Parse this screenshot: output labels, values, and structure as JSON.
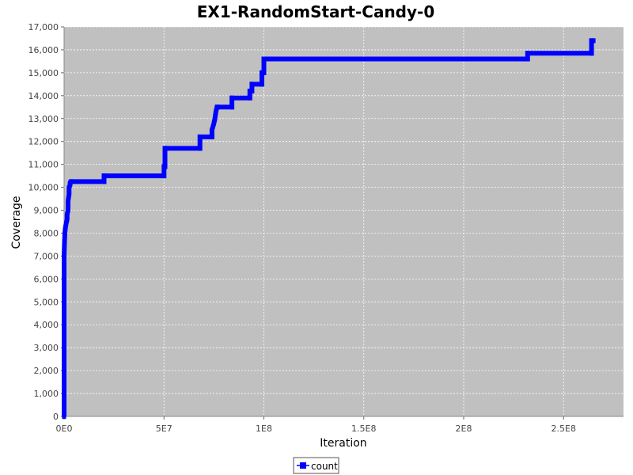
{
  "chart_data": {
    "type": "line",
    "title": "EX1-RandomStart-Candy-0",
    "xlabel": "Iteration",
    "ylabel": "Coverage",
    "xlim": [
      0,
      280000000
    ],
    "ylim": [
      0,
      17000
    ],
    "x_ticks": [
      0,
      50000000,
      100000000,
      150000000,
      200000000,
      250000000
    ],
    "x_tick_labels": [
      "0E0",
      "5E7",
      "1E8",
      "1.5E8",
      "2E8",
      "2.5E8"
    ],
    "y_ticks": [
      0,
      1000,
      2000,
      3000,
      4000,
      5000,
      6000,
      7000,
      8000,
      9000,
      10000,
      11000,
      12000,
      13000,
      14000,
      15000,
      16000,
      17000
    ],
    "y_tick_labels": [
      "0",
      "1,000",
      "2,000",
      "3,000",
      "4,000",
      "5,000",
      "6,000",
      "7,000",
      "8,000",
      "9,000",
      "10,000",
      "11,000",
      "12,000",
      "13,000",
      "14,000",
      "15,000",
      "16,000",
      "17,000"
    ],
    "grid": true,
    "legend_position": "bottom",
    "background_color": "#c0c0c0",
    "grid_color": "#ffffff",
    "series": [
      {
        "name": "count",
        "color": "#0000ff",
        "x": [
          0,
          0,
          0,
          0,
          0,
          0,
          0,
          0,
          0,
          0,
          0,
          0,
          200000,
          400000,
          600000,
          800000,
          1000000,
          1500000,
          1500000,
          2000000,
          2000000,
          2500000,
          2500000,
          3000000,
          3000000,
          3500000,
          20000000,
          20000000,
          50000000,
          50000000,
          50500000,
          50500000,
          51000000,
          68000000,
          68000000,
          74000000,
          74000000,
          75000000,
          75500000,
          76000000,
          76500000,
          77000000,
          84000000,
          84000000,
          93000000,
          93000000,
          94000000,
          94000000,
          99000000,
          99000000,
          100000000,
          100000000,
          232000000,
          232000000,
          264000000,
          264000000,
          265000000
        ],
        "y": [
          0,
          1000,
          1800,
          2500,
          3200,
          3800,
          4300,
          4800,
          5200,
          5600,
          6000,
          7000,
          7600,
          8000,
          8200,
          8300,
          8400,
          8600,
          8800,
          9000,
          9400,
          9700,
          10000,
          10100,
          10200,
          10250,
          10250,
          10500,
          10500,
          10900,
          10900,
          11700,
          11700,
          11700,
          12200,
          12200,
          12500,
          12800,
          13000,
          13300,
          13500,
          13500,
          13500,
          13900,
          13900,
          14200,
          14200,
          14500,
          14500,
          15000,
          15000,
          15600,
          15600,
          15850,
          15850,
          16400,
          16400
        ]
      }
    ]
  },
  "legend": {
    "items": [
      {
        "label": "count",
        "color": "#0000ff"
      }
    ]
  }
}
